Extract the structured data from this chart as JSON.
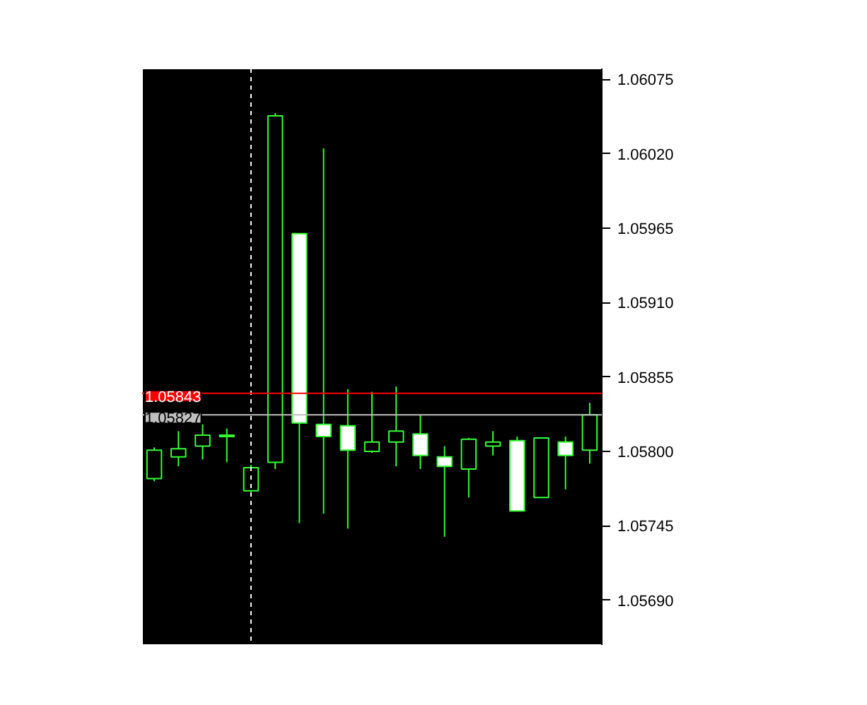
{
  "chart_data": {
    "type": "candlestick",
    "categories": [
      null,
      null,
      null,
      null,
      null,
      null,
      null,
      null,
      null,
      null,
      null,
      null,
      null,
      null,
      null,
      null,
      null,
      null,
      null
    ],
    "ohlc": [
      [
        1.0578,
        1.05803,
        1.05778,
        1.05801
      ],
      [
        1.05796,
        1.05815,
        1.05789,
        1.05802
      ],
      [
        1.05804,
        1.0582,
        1.05794,
        1.05812
      ],
      [
        1.05811,
        1.05817,
        1.05792,
        1.05812
      ],
      [
        1.05771,
        1.0579,
        1.0577,
        1.05788
      ],
      [
        1.05792,
        1.0605,
        1.05787,
        1.06048
      ],
      [
        1.05961,
        1.05961,
        1.05747,
        1.05821
      ],
      [
        1.0582,
        1.06024,
        1.05754,
        1.05811
      ],
      [
        1.05819,
        1.05846,
        1.05743,
        1.05801
      ],
      [
        1.058,
        1.05844,
        1.05799,
        1.05807
      ],
      [
        1.05807,
        1.05848,
        1.05789,
        1.05815
      ],
      [
        1.05813,
        1.05827,
        1.05787,
        1.05797
      ],
      [
        1.05796,
        1.05804,
        1.05737,
        1.05789
      ],
      [
        1.05787,
        1.0581,
        1.05766,
        1.05809
      ],
      [
        1.05804,
        1.05815,
        1.05797,
        1.05807
      ],
      [
        1.05808,
        1.05811,
        1.05756,
        1.05756
      ],
      [
        1.05766,
        1.0581,
        1.05766,
        1.0581
      ],
      [
        1.05807,
        1.05811,
        1.05772,
        1.05797
      ],
      [
        1.05801,
        1.05836,
        1.05791,
        1.05827
      ]
    ],
    "color": "#33ff33",
    "colors": [
      "#000000",
      "#000000",
      "#000000",
      "#000000",
      "#000000",
      "#000000",
      "#ffffff",
      "#ffffff",
      "#ffffff",
      "#000000",
      "#000000",
      "#ffffff",
      "#ffffff",
      "#000000",
      "#000000",
      "#ffffff",
      "#000000",
      "#ffffff",
      "#000000"
    ],
    "ylim": [
      1.05657,
      1.06083
    ],
    "yticks": [
      {
        "value": 1.0569,
        "label": "1.05690"
      },
      {
        "value": 1.05745,
        "label": "1.05745"
      },
      {
        "value": 1.058,
        "label": "1.05800"
      },
      {
        "value": 1.05855,
        "label": "1.05855"
      },
      {
        "value": 1.0591,
        "label": "1.05910"
      },
      {
        "value": 1.05965,
        "label": "1.05965"
      },
      {
        "value": 1.0602,
        "label": "1.06020"
      },
      {
        "value": 1.06075,
        "label": "1.06075"
      }
    ],
    "ref_lines": [
      {
        "axis": "y",
        "value": 1.05843,
        "label": "1.05843",
        "color": "#ff0000"
      },
      {
        "axis": "y",
        "value": 1.05827,
        "label": "1.05827",
        "color": "#c0c0c0"
      }
    ],
    "grid": false
  }
}
